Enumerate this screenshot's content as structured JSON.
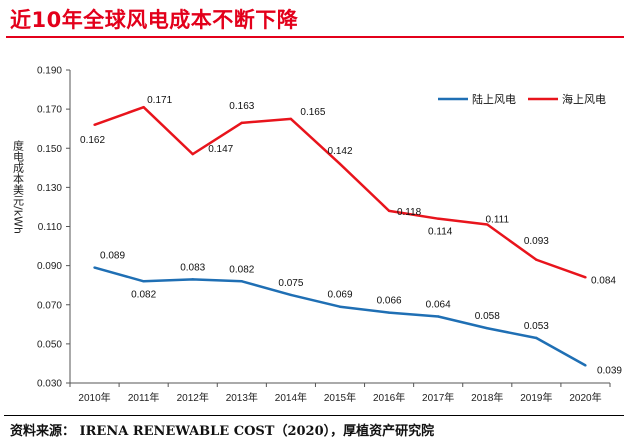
{
  "title": "近10年全球风电成本不断下降",
  "source": "资料来源： IRENA RENEWABLE COST（2020），厚植资产研究院",
  "chart_data": {
    "type": "line",
    "categories": [
      "2010年",
      "2011年",
      "2012年",
      "2013年",
      "2014年",
      "2015年",
      "2016年",
      "2017年",
      "2018年",
      "2019年",
      "2020年"
    ],
    "ylabel": "度电成本美元/kWh",
    "ylim": [
      0.03,
      0.19
    ],
    "yticks": [
      "0.030",
      "0.050",
      "0.070",
      "0.090",
      "0.110",
      "0.130",
      "0.150",
      "0.170",
      "0.190"
    ],
    "legend_position": "top-right",
    "series": [
      {
        "name": "陆上风电",
        "color": "#1f6fb4",
        "values": [
          0.089,
          0.082,
          0.083,
          0.082,
          0.075,
          0.069,
          0.066,
          0.064,
          0.058,
          0.053,
          0.039
        ],
        "labels": [
          "0.089",
          "0.082",
          "0.083",
          "0.082",
          "0.075",
          "0.069",
          "0.066",
          "0.064",
          "0.058",
          "0.053",
          "0.039"
        ]
      },
      {
        "name": "海上风电",
        "color": "#e8141c",
        "values": [
          0.162,
          0.171,
          0.147,
          0.163,
          0.165,
          0.142,
          0.118,
          0.114,
          0.111,
          0.093,
          0.084
        ],
        "labels": [
          "0.162",
          "0.171",
          "0.147",
          "0.163",
          "0.165",
          "0.142",
          "0.118",
          "0.114",
          "0.111",
          "0.093",
          "0.084"
        ]
      }
    ]
  }
}
